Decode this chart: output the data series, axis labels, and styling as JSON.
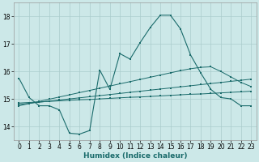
{
  "xlabel": "Humidex (Indice chaleur)",
  "ylabel": "",
  "background_color": "#cce8e8",
  "grid_color": "#aacccc",
  "line_color": "#1a6b6b",
  "xlim": [
    -0.5,
    23.5
  ],
  "ylim": [
    13.5,
    18.5
  ],
  "yticks": [
    14,
    15,
    16,
    17,
    18
  ],
  "xticks": [
    0,
    1,
    2,
    3,
    4,
    5,
    6,
    7,
    8,
    9,
    10,
    11,
    12,
    13,
    14,
    15,
    16,
    17,
    18,
    19,
    20,
    21,
    22,
    23
  ],
  "main_x": [
    0,
    1,
    2,
    3,
    4,
    5,
    6,
    7,
    8,
    9,
    10,
    11,
    12,
    13,
    14,
    15,
    16,
    17,
    18,
    19,
    20,
    21,
    22,
    23
  ],
  "main_y": [
    15.75,
    15.05,
    14.75,
    14.75,
    14.6,
    13.75,
    13.72,
    13.85,
    16.05,
    15.35,
    16.65,
    16.45,
    17.05,
    17.6,
    18.05,
    18.05,
    17.55,
    16.6,
    15.95,
    15.35,
    15.05,
    15.0,
    14.75,
    14.75
  ],
  "line2_x": [
    0,
    1,
    2,
    3,
    4,
    5,
    6,
    7,
    8,
    9,
    10,
    11,
    12,
    13,
    14,
    15,
    16,
    17,
    18,
    19,
    20,
    21,
    22,
    23
  ],
  "line2_y": [
    14.85,
    14.87,
    14.89,
    14.91,
    14.93,
    14.95,
    14.97,
    14.98,
    15.0,
    15.02,
    15.04,
    15.06,
    15.07,
    15.09,
    15.11,
    15.13,
    15.15,
    15.17,
    15.18,
    15.2,
    15.22,
    15.24,
    15.26,
    15.28
  ],
  "line3_x": [
    0,
    1,
    2,
    3,
    4,
    5,
    6,
    7,
    8,
    9,
    10,
    11,
    12,
    13,
    14,
    15,
    16,
    17,
    18,
    19,
    20,
    21,
    22,
    23
  ],
  "line3_y": [
    14.8,
    14.84,
    14.88,
    14.92,
    14.96,
    15.0,
    15.04,
    15.08,
    15.12,
    15.16,
    15.2,
    15.24,
    15.28,
    15.32,
    15.36,
    15.4,
    15.44,
    15.48,
    15.52,
    15.56,
    15.6,
    15.64,
    15.68,
    15.72
  ],
  "line4_x": [
    0,
    1,
    2,
    3,
    4,
    5,
    6,
    7,
    8,
    9,
    10,
    11,
    12,
    13,
    14,
    15,
    16,
    17,
    18,
    19,
    20,
    21,
    22,
    23
  ],
  "line4_y": [
    14.75,
    14.83,
    14.91,
    14.99,
    15.07,
    15.15,
    15.23,
    15.31,
    15.39,
    15.47,
    15.55,
    15.63,
    15.71,
    15.79,
    15.87,
    15.95,
    16.03,
    16.1,
    16.15,
    16.17,
    16.0,
    15.8,
    15.6,
    15.45
  ]
}
